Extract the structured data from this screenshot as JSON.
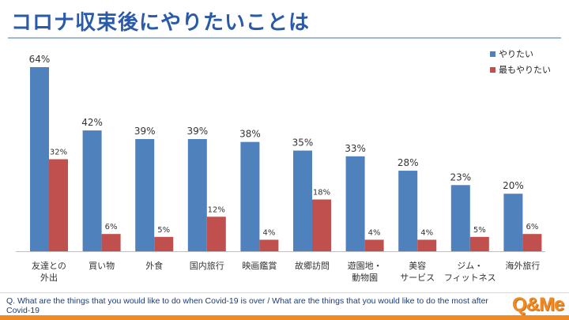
{
  "page": {
    "title": "コロナ収束後にやりたいことは",
    "question": "Q. What are the things that you would like to do when Covid-19 is over / What are the things that you would like to do the most after Covid-19",
    "logo": "Q&Me"
  },
  "chart_data": {
    "type": "bar",
    "categories": [
      [
        "友達との",
        "外出"
      ],
      [
        "買い物"
      ],
      [
        "外食"
      ],
      [
        "国内旅行"
      ],
      [
        "映画鑑賞"
      ],
      [
        "故郷訪問"
      ],
      [
        "遊園地・",
        "動物園"
      ],
      [
        "美容",
        "サービス"
      ],
      [
        "ジム・",
        "フィットネス"
      ],
      [
        "海外旅行"
      ]
    ],
    "series": [
      {
        "name": "やりたい",
        "color": "#4f81bd",
        "values": [
          64,
          42,
          39,
          39,
          38,
          35,
          33,
          28,
          23,
          20
        ]
      },
      {
        "name": "最もやりたい",
        "color": "#c0504d",
        "values": [
          32,
          6,
          5,
          12,
          4,
          18,
          4,
          4,
          5,
          6
        ]
      }
    ],
    "value_suffix": "%",
    "ylim": [
      0,
      64
    ],
    "grid": false,
    "legend_position": "top-right",
    "xlabel": "",
    "ylabel": ""
  }
}
